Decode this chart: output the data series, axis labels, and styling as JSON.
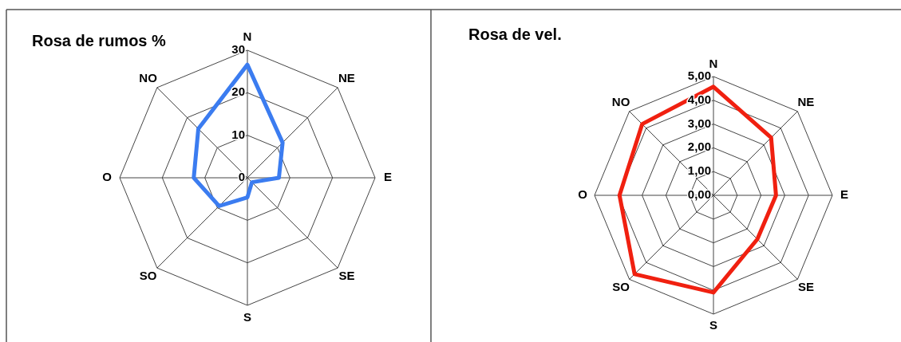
{
  "chart_data": [
    {
      "type": "radar",
      "title": "Rosa de rumos %",
      "categories": [
        "N",
        "NE",
        "E",
        "SE",
        "S",
        "SO",
        "O",
        "NO"
      ],
      "ylim": [
        0,
        30
      ],
      "yticks": [
        0,
        10,
        20,
        30
      ],
      "grid": true,
      "series": [
        {
          "color": "#3b7cf0",
          "values": [
            26.6,
            11.7,
            7.4,
            1.5,
            4.6,
            9.4,
            12.6,
            16.3
          ]
        }
      ]
    },
    {
      "type": "radar",
      "title": "Rosa de vel.",
      "categories": [
        "N",
        "NE",
        "E",
        "SE",
        "S",
        "SO",
        "O",
        "NO"
      ],
      "ylim": [
        0,
        5
      ],
      "yticks": [
        {
          "value": 0,
          "label": "0,00"
        },
        {
          "value": 1,
          "label": "1,00"
        },
        {
          "value": 2,
          "label": "2,00"
        },
        {
          "value": 3,
          "label": "3,00"
        },
        {
          "value": 4,
          "label": "4,00"
        },
        {
          "value": 5,
          "label": "5,00"
        }
      ],
      "grid": true,
      "series": [
        {
          "color": "#f02010",
          "values": [
            4.57,
            3.43,
            2.63,
            2.61,
            4.09,
            4.69,
            3.95,
            4.24
          ]
        }
      ]
    }
  ]
}
